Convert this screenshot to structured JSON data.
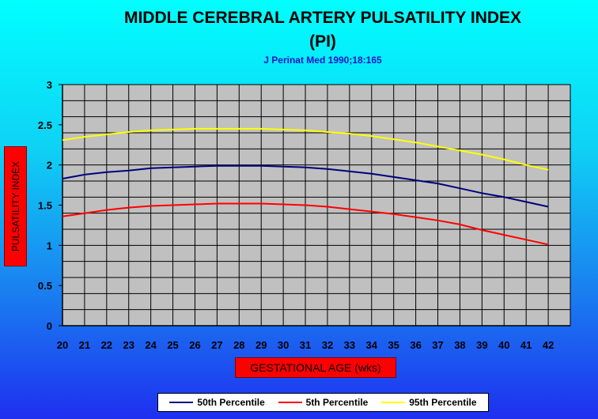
{
  "chart_data": {
    "type": "line",
    "title": "MIDDLE CEREBRAL ARTERY PULSATILITY INDEX",
    "title_line2": "(PI)",
    "subtitle": "J Perinat Med 1990;18:165",
    "xlabel": "GESTATIONAL AGE (wks)",
    "ylabel": "PULSATILITY INDEX",
    "x": [
      20,
      21,
      22,
      23,
      24,
      25,
      26,
      27,
      28,
      29,
      30,
      31,
      32,
      33,
      34,
      35,
      36,
      37,
      38,
      39,
      40,
      41,
      42
    ],
    "x_ticks": [
      "20",
      "21",
      "22",
      "23",
      "24",
      "25",
      "26",
      "27",
      "28",
      "29",
      "30",
      "31",
      "32",
      "33",
      "34",
      "35",
      "36",
      "37",
      "38",
      "39",
      "40",
      "41",
      "42"
    ],
    "y_ticks": [
      "0",
      "0.5",
      "1",
      "1.5",
      "2",
      "2.5",
      "3"
    ],
    "ylim": [
      0,
      3
    ],
    "grid": true,
    "legend_position": "bottom",
    "plot_background": "#c0c0c0",
    "series": [
      {
        "name": "50th Percentile",
        "color": "#000080",
        "values": [
          1.83,
          1.88,
          1.91,
          1.93,
          1.96,
          1.97,
          1.98,
          1.99,
          1.99,
          1.99,
          1.98,
          1.97,
          1.95,
          1.92,
          1.89,
          1.85,
          1.81,
          1.77,
          1.71,
          1.65,
          1.6,
          1.54,
          1.48
        ]
      },
      {
        "name": "5th Percentile",
        "color": "#ff0000",
        "values": [
          1.36,
          1.4,
          1.44,
          1.47,
          1.49,
          1.5,
          1.51,
          1.52,
          1.52,
          1.52,
          1.51,
          1.5,
          1.48,
          1.45,
          1.42,
          1.39,
          1.35,
          1.31,
          1.26,
          1.19,
          1.13,
          1.07,
          1.01
        ]
      },
      {
        "name": "95th Percentile",
        "color": "#ffff00",
        "values": [
          2.31,
          2.35,
          2.38,
          2.41,
          2.43,
          2.44,
          2.45,
          2.45,
          2.45,
          2.45,
          2.44,
          2.43,
          2.41,
          2.39,
          2.36,
          2.32,
          2.28,
          2.23,
          2.18,
          2.13,
          2.07,
          2.0,
          1.94
        ]
      }
    ]
  }
}
